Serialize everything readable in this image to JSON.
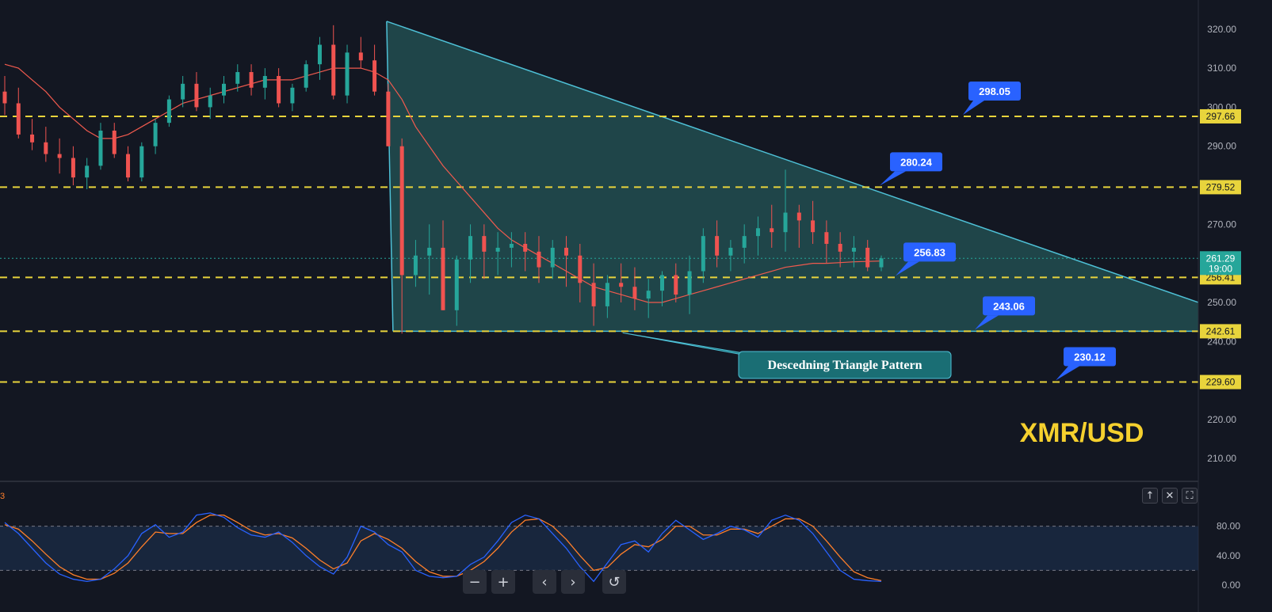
{
  "chart_data": [
    {
      "type": "candlestick",
      "symbol_label": "XMR/USD",
      "y_ticks": [
        320,
        310,
        300,
        290,
        280,
        270,
        260,
        250,
        240,
        230,
        220,
        210
      ],
      "ylim": [
        207,
        323
      ],
      "current_price": {
        "price": "261.29",
        "countdown": "19:00",
        "value": 261.29
      },
      "horizontal_levels": [
        {
          "value": 297.66,
          "axis_label": "297.66",
          "callout": "298.05"
        },
        {
          "value": 279.52,
          "axis_label": "279.52",
          "callout": "280.24"
        },
        {
          "value": 256.41,
          "axis_label": "256.41",
          "callout": "256.83"
        },
        {
          "value": 242.61,
          "axis_label": "242.61",
          "callout": "243.06"
        },
        {
          "value": 229.6,
          "axis_label": "229.60",
          "callout": "230.12"
        }
      ],
      "annotation": "Descedning Triangle Pattern",
      "pattern": {
        "apex_value": 322,
        "lower_value": 242.61,
        "right_edge_value": 250
      },
      "candles": [
        [
          304,
          308,
          298,
          301
        ],
        [
          301,
          305,
          292,
          293
        ],
        [
          293,
          297,
          289,
          291
        ],
        [
          291,
          295,
          286,
          288
        ],
        [
          288,
          292,
          283,
          287
        ],
        [
          287,
          290,
          280,
          282
        ],
        [
          282,
          287,
          279,
          285
        ],
        [
          285,
          296,
          284,
          294
        ],
        [
          294,
          296,
          287,
          288
        ],
        [
          288,
          290,
          281,
          282
        ],
        [
          282,
          291,
          281,
          290
        ],
        [
          290,
          297,
          288,
          296
        ],
        [
          296,
          303,
          295,
          302
        ],
        [
          302,
          308,
          300,
          306
        ],
        [
          306,
          309,
          299,
          300
        ],
        [
          300,
          305,
          297,
          303
        ],
        [
          303,
          308,
          301,
          306
        ],
        [
          306,
          311,
          304,
          309
        ],
        [
          309,
          311,
          303,
          305
        ],
        [
          305,
          310,
          302,
          308
        ],
        [
          308,
          310,
          300,
          301
        ],
        [
          301,
          306,
          299,
          305
        ],
        [
          305,
          312,
          304,
          311
        ],
        [
          311,
          318,
          307,
          316
        ],
        [
          316,
          321,
          302,
          303
        ],
        [
          303,
          316,
          301,
          314
        ],
        [
          314,
          318,
          310,
          312
        ],
        [
          312,
          316,
          303,
          304
        ],
        [
          304,
          306,
          290,
          290
        ],
        [
          290,
          292,
          242,
          257
        ],
        [
          257,
          266,
          254,
          262
        ],
        [
          262,
          270,
          252,
          264
        ],
        [
          264,
          271,
          248,
          248
        ],
        [
          248,
          262,
          244,
          261
        ],
        [
          261,
          270,
          255,
          267
        ],
        [
          267,
          270,
          256,
          263
        ],
        [
          263,
          268,
          257,
          264
        ],
        [
          264,
          268,
          259,
          265
        ],
        [
          265,
          268,
          258,
          263
        ],
        [
          263,
          267,
          255,
          259
        ],
        [
          259,
          266,
          256,
          264
        ],
        [
          264,
          267,
          254,
          262
        ],
        [
          262,
          265,
          250,
          255
        ],
        [
          255,
          260,
          244,
          249
        ],
        [
          249,
          257,
          246,
          255
        ],
        [
          255,
          260,
          250,
          254
        ],
        [
          254,
          259,
          248,
          251
        ],
        [
          251,
          256,
          246,
          253
        ],
        [
          253,
          258,
          249,
          257
        ],
        [
          257,
          260,
          250,
          252
        ],
        [
          252,
          262,
          247,
          258
        ],
        [
          258,
          269,
          255,
          267
        ],
        [
          267,
          271,
          259,
          262
        ],
        [
          262,
          266,
          258,
          264
        ],
        [
          264,
          270,
          260,
          267
        ],
        [
          267,
          272,
          262,
          269
        ],
        [
          269,
          275,
          264,
          268
        ],
        [
          268,
          284,
          263,
          273
        ],
        [
          273,
          275,
          264,
          271
        ],
        [
          271,
          276,
          265,
          268
        ],
        [
          268,
          271,
          260,
          265
        ],
        [
          265,
          268,
          259,
          263
        ],
        [
          263,
          267,
          259,
          264
        ],
        [
          264,
          266,
          258,
          259
        ],
        [
          259,
          262,
          258,
          261.29
        ]
      ],
      "ma": [
        311,
        310,
        307,
        304,
        300,
        297,
        294,
        292,
        292,
        293,
        295,
        297,
        299,
        301,
        302,
        303,
        304,
        305,
        306,
        307,
        307,
        307,
        308,
        309,
        310,
        310,
        310,
        309,
        307,
        302,
        295,
        290,
        285,
        281,
        277,
        273,
        269,
        266,
        264,
        262,
        260,
        258,
        256,
        254,
        253,
        252,
        251,
        250,
        250,
        251,
        252,
        253,
        254,
        255,
        256,
        257,
        258,
        259,
        259.5,
        260,
        260,
        260.2,
        260.4,
        260.5,
        260.6
      ],
      "stoch": {
        "ylim": [
          0,
          100
        ],
        "y_ticks": [
          "80.00",
          "40.00",
          "0.00"
        ],
        "bands": [
          80,
          20
        ],
        "label": "3",
        "k": [
          85,
          70,
          50,
          30,
          15,
          8,
          5,
          8,
          22,
          40,
          70,
          82,
          65,
          72,
          95,
          98,
          92,
          78,
          68,
          65,
          72,
          58,
          40,
          25,
          15,
          38,
          80,
          72,
          55,
          45,
          20,
          12,
          10,
          12,
          28,
          38,
          60,
          85,
          95,
          90,
          70,
          50,
          25,
          5,
          30,
          55,
          60,
          45,
          70,
          88,
          75,
          62,
          70,
          80,
          75,
          65,
          88,
          95,
          88,
          70,
          45,
          20,
          8,
          6,
          5
        ],
        "d": [
          82,
          76,
          60,
          42,
          25,
          14,
          8,
          8,
          16,
          30,
          52,
          72,
          70,
          70,
          85,
          95,
          95,
          85,
          74,
          68,
          70,
          64,
          50,
          34,
          22,
          30,
          60,
          70,
          62,
          50,
          32,
          18,
          12,
          12,
          20,
          32,
          50,
          72,
          88,
          90,
          80,
          62,
          40,
          20,
          24,
          42,
          55,
          52,
          62,
          80,
          80,
          68,
          68,
          76,
          76,
          70,
          80,
          90,
          90,
          80,
          60,
          38,
          18,
          10,
          6
        ]
      },
      "toolbar": {
        "indicator_buttons": [
          "↑",
          "✕",
          "⛶"
        ],
        "nav_buttons": [
          "−",
          "+",
          "‹",
          "›",
          "↺"
        ]
      }
    }
  ],
  "colors": {
    "background": "#131722",
    "bull": "#26a69a",
    "bear": "#ef5350",
    "level": "#e8d43c",
    "callout": "#2962ff",
    "triangle_line": "#4ec0d6",
    "triangle_fill": "#2a6b6a",
    "label_bg": "#1a6e74",
    "ma": "#f05a4e",
    "stoch_k": "#2962ff",
    "stoch_d": "#ff7f2a",
    "symbol_text": "#f5d02e"
  }
}
